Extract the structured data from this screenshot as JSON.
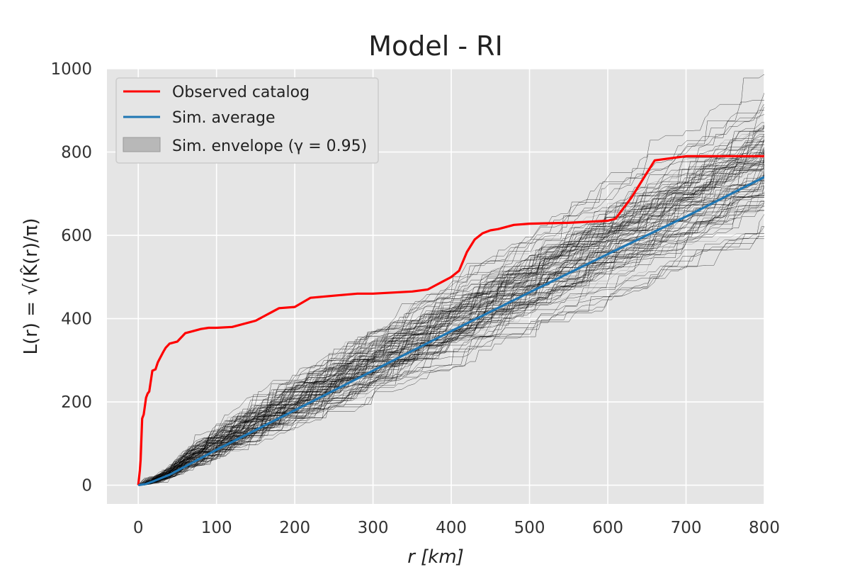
{
  "chart_data": {
    "type": "line",
    "title": "Model - RI",
    "xlabel": "r  [km]",
    "ylabel": "L(r) = √(K̂(r)/π)",
    "xlim": [
      -40,
      800
    ],
    "ylim": [
      -45,
      1000
    ],
    "xticks": [
      0,
      100,
      200,
      300,
      400,
      500,
      600,
      700,
      800
    ],
    "yticks": [
      0,
      200,
      400,
      600,
      800,
      1000
    ],
    "grid": true,
    "legend_position": "top-left",
    "series": [
      {
        "name": "Observed catalog",
        "color": "#ff0000",
        "x": [
          0,
          2,
          3,
          5,
          7,
          10,
          12,
          14,
          18,
          22,
          25,
          32,
          35,
          40,
          50,
          60,
          70,
          80,
          90,
          100,
          120,
          150,
          180,
          200,
          220,
          250,
          280,
          300,
          350,
          370,
          380,
          390,
          400,
          410,
          420,
          430,
          440,
          450,
          460,
          480,
          500,
          550,
          600,
          610,
          630,
          650,
          660,
          680,
          700,
          800
        ],
        "y": [
          0,
          35,
          60,
          160,
          170,
          210,
          220,
          225,
          275,
          278,
          295,
          320,
          330,
          340,
          345,
          365,
          370,
          375,
          378,
          378,
          380,
          395,
          425,
          428,
          450,
          455,
          460,
          460,
          465,
          470,
          480,
          490,
          500,
          515,
          560,
          590,
          605,
          612,
          615,
          625,
          628,
          630,
          635,
          640,
          690,
          750,
          780,
          785,
          790,
          790
        ]
      },
      {
        "name": "Sim. average",
        "color": "#1f77b4",
        "x": [
          0,
          10,
          20,
          40,
          60,
          100,
          200,
          300,
          400,
          500,
          600,
          700,
          800
        ],
        "y": [
          0,
          3,
          10,
          25,
          45,
          85,
          180,
          275,
          370,
          463,
          555,
          645,
          740
        ]
      }
    ],
    "envelope": {
      "name": "Sim. envelope (γ = 0.95)",
      "color": "#000000"
    },
    "simulation_colors": {
      "background": "#e5e5e5",
      "grid": "#ffffff"
    }
  }
}
